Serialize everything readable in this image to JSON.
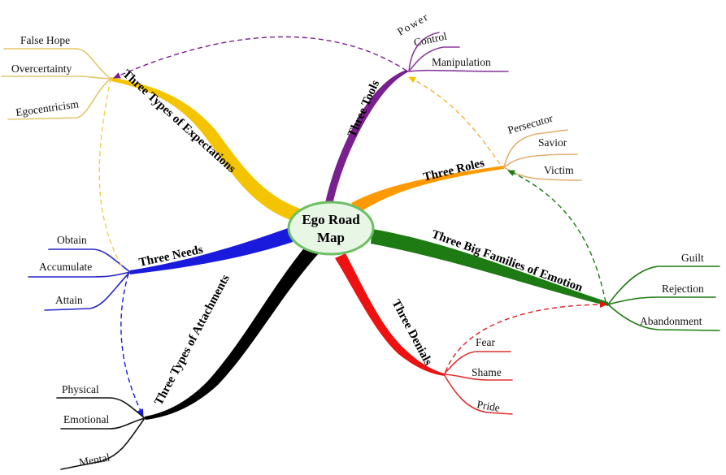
{
  "center": {
    "line1": "Ego Road",
    "line2": "Map"
  },
  "colors": {
    "expectations": "#f5c400",
    "tools": "#7a1f8f",
    "roles": "#ff9900",
    "needs": "#1a1adc",
    "attachments": "#000000",
    "emotion": "#1e7a12",
    "denials": "#ee1111"
  },
  "branches": {
    "expectations": {
      "label": "Three Types of Expectations",
      "items": [
        "False Hope",
        "Overcertainty",
        "Egocentricism"
      ]
    },
    "tools": {
      "label": "Three Tools",
      "items": [
        "Power",
        "Control",
        "Manipulation"
      ]
    },
    "roles": {
      "label": "Three Roles",
      "items": [
        "Persecutor",
        "Savior",
        "Victim"
      ]
    },
    "needs": {
      "label": "Three Needs",
      "items": [
        "Obtain",
        "Accumulate",
        "Attain"
      ]
    },
    "attachments": {
      "label": "Three Types of Attachments",
      "items": [
        "Physical",
        "Emotional",
        "Mental"
      ]
    },
    "emotion": {
      "label": "Three Big Families of Emotion",
      "items": [
        "Guilt",
        "Rejection",
        "Abandonment"
      ]
    },
    "denials": {
      "label": "Three Denials",
      "items": [
        "Fear",
        "Shame",
        "Pride"
      ]
    }
  }
}
